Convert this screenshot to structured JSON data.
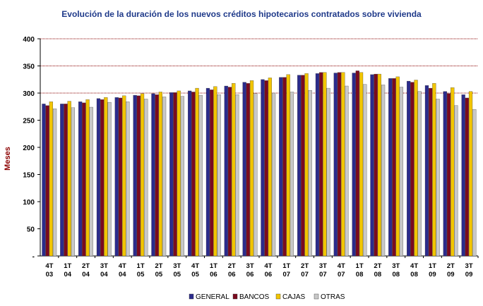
{
  "chart_data": {
    "type": "bar",
    "title": "Evolución de la duración de los nuevos créditos hipotecarios contratados sobre vivienda",
    "ylabel": "Meses",
    "xlabel": "",
    "ylim": [
      0,
      400
    ],
    "yticks": [
      0,
      50,
      100,
      150,
      200,
      250,
      300,
      350,
      400
    ],
    "ytick_labels": [
      "-",
      "50",
      "100",
      "150",
      "200",
      "250",
      "300",
      "350",
      "400"
    ],
    "grid": "horizontal dotted at 300, 350, 400",
    "legend_position": "bottom",
    "categories": [
      "4T 03",
      "1T 04",
      "2T 04",
      "3T 04",
      "4T 04",
      "1T 05",
      "2T 05",
      "3T 05",
      "4T 05",
      "1T 06",
      "2T 06",
      "3T 06",
      "4T 06",
      "1T 07",
      "2T 07",
      "3T 07",
      "4T 07",
      "1T 08",
      "2T 08",
      "3T 08",
      "4T 08",
      "1T 09",
      "2T 09",
      "3T 09"
    ],
    "category_lines": [
      [
        "4T",
        "03"
      ],
      [
        "1T",
        "04"
      ],
      [
        "2T",
        "04"
      ],
      [
        "3T",
        "04"
      ],
      [
        "4T",
        "04"
      ],
      [
        "1T",
        "05"
      ],
      [
        "2T",
        "05"
      ],
      [
        "3T",
        "05"
      ],
      [
        "4T",
        "05"
      ],
      [
        "1T",
        "06"
      ],
      [
        "2T",
        "06"
      ],
      [
        "3T",
        "06"
      ],
      [
        "4T",
        "06"
      ],
      [
        "1T",
        "07"
      ],
      [
        "2T",
        "07"
      ],
      [
        "3T",
        "07"
      ],
      [
        "4T",
        "07"
      ],
      [
        "1T",
        "08"
      ],
      [
        "2T",
        "08"
      ],
      [
        "3T",
        "08"
      ],
      [
        "4T",
        "08"
      ],
      [
        "1T",
        "09"
      ],
      [
        "2T",
        "09"
      ],
      [
        "3T",
        "09"
      ]
    ],
    "series": [
      {
        "name": "GENERAL",
        "color": "#2b2b8c",
        "values": [
          280,
          280,
          284,
          290,
          292,
          296,
          299,
          301,
          304,
          309,
          313,
          320,
          325,
          329,
          333,
          336,
          337,
          337,
          334,
          327,
          322,
          314,
          303,
          297
        ]
      },
      {
        "name": "BANCOS",
        "color": "#7a0a1e",
        "values": [
          277,
          280,
          282,
          288,
          291,
          295,
          297,
          301,
          302,
          306,
          311,
          318,
          323,
          329,
          333,
          338,
          338,
          341,
          335,
          327,
          320,
          309,
          299,
          291
        ]
      },
      {
        "name": "CAJAS",
        "color": "#f2c500",
        "values": [
          284,
          285,
          288,
          292,
          295,
          299,
          302,
          304,
          309,
          312,
          318,
          323,
          328,
          334,
          336,
          338,
          338,
          338,
          335,
          330,
          324,
          318,
          310,
          303
        ]
      },
      {
        "name": "OTRAS",
        "color": "#c8c8c8",
        "values": [
          271,
          273,
          274,
          283,
          284,
          289,
          293,
          294,
          296,
          297,
          297,
          299,
          300,
          302,
          305,
          309,
          313,
          316,
          315,
          311,
          303,
          289,
          277,
          270
        ]
      }
    ]
  }
}
